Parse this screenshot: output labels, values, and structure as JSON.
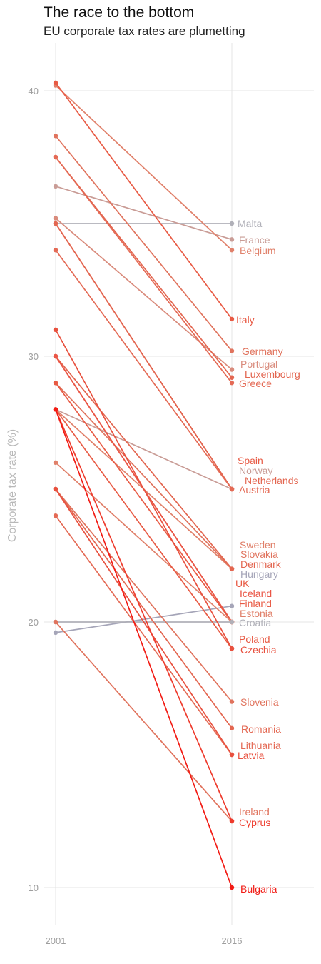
{
  "chart_data": {
    "type": "line",
    "title": "The race to the bottom",
    "subtitle": "EU corporate tax rates are plumetting",
    "ylabel": "Corporate tax rate (%)",
    "x": [
      "2001",
      "2016"
    ],
    "ylim": [
      8.5,
      41.5
    ],
    "yticks": [
      "10",
      "20",
      "30",
      "40"
    ],
    "grid": true,
    "series": [
      {
        "name": "Malta",
        "values": [
          35,
          35
        ],
        "color": "#b0b0b8"
      },
      {
        "name": "France",
        "values": [
          36.4,
          34.4
        ],
        "color": "#c99c96"
      },
      {
        "name": "Belgium",
        "values": [
          40.2,
          34
        ],
        "color": "#e0806a"
      },
      {
        "name": "Italy",
        "values": [
          40.3,
          31.4
        ],
        "color": "#e85a44"
      },
      {
        "name": "Germany",
        "values": [
          38.3,
          30.2
        ],
        "color": "#e0735d"
      },
      {
        "name": "Portugal",
        "values": [
          35.2,
          29.5
        ],
        "color": "#d98b7c"
      },
      {
        "name": "Luxembourg",
        "values": [
          37.5,
          29.2
        ],
        "color": "#e36650"
      },
      {
        "name": "Greece",
        "values": [
          37.5,
          29
        ],
        "color": "#e46a55"
      },
      {
        "name": "Spain",
        "values": [
          35,
          25
        ],
        "color": "#e85a44"
      },
      {
        "name": "Norway",
        "values": [
          28,
          25
        ],
        "color": "#c99c96"
      },
      {
        "name": "Netherlands",
        "values": [
          35,
          25
        ],
        "color": "#e36650"
      },
      {
        "name": "Austria",
        "values": [
          34,
          25
        ],
        "color": "#e46a55"
      },
      {
        "name": "Sweden",
        "values": [
          28,
          22
        ],
        "color": "#e0806a"
      },
      {
        "name": "Slovakia",
        "values": [
          29,
          22
        ],
        "color": "#e0735d"
      },
      {
        "name": "Denmark",
        "values": [
          30,
          22
        ],
        "color": "#e36650"
      },
      {
        "name": "Hungary",
        "values": [
          19.6,
          20.6
        ],
        "color": "#a5a5b8"
      },
      {
        "name": "UK",
        "values": [
          30,
          20
        ],
        "color": "#e85a44"
      },
      {
        "name": "Iceland",
        "values": [
          30,
          20
        ],
        "color": "#ea5545"
      },
      {
        "name": "Finland",
        "values": [
          29,
          20
        ],
        "color": "#e85a44"
      },
      {
        "name": "Estonia",
        "values": [
          26,
          20
        ],
        "color": "#e0806a"
      },
      {
        "name": "Croatia",
        "values": [
          20,
          20
        ],
        "color": "#b0b0b8"
      },
      {
        "name": "Poland",
        "values": [
          28,
          19
        ],
        "color": "#e85a44"
      },
      {
        "name": "Czechia",
        "values": [
          31,
          19
        ],
        "color": "#e8503e"
      },
      {
        "name": "Slovenia",
        "values": [
          25,
          17
        ],
        "color": "#e0735d"
      },
      {
        "name": "Romania",
        "values": [
          25,
          16
        ],
        "color": "#e36650"
      },
      {
        "name": "Lithuania",
        "values": [
          24,
          15
        ],
        "color": "#e46a55"
      },
      {
        "name": "Latvia",
        "values": [
          25,
          15
        ],
        "color": "#e8503e"
      },
      {
        "name": "Ireland",
        "values": [
          20,
          12.5
        ],
        "color": "#e0735d"
      },
      {
        "name": "Cyprus",
        "values": [
          28,
          12.5
        ],
        "color": "#ee3a2c"
      },
      {
        "name": "Bulgaria",
        "values": [
          28,
          10
        ],
        "color": "#f21b14"
      }
    ]
  }
}
